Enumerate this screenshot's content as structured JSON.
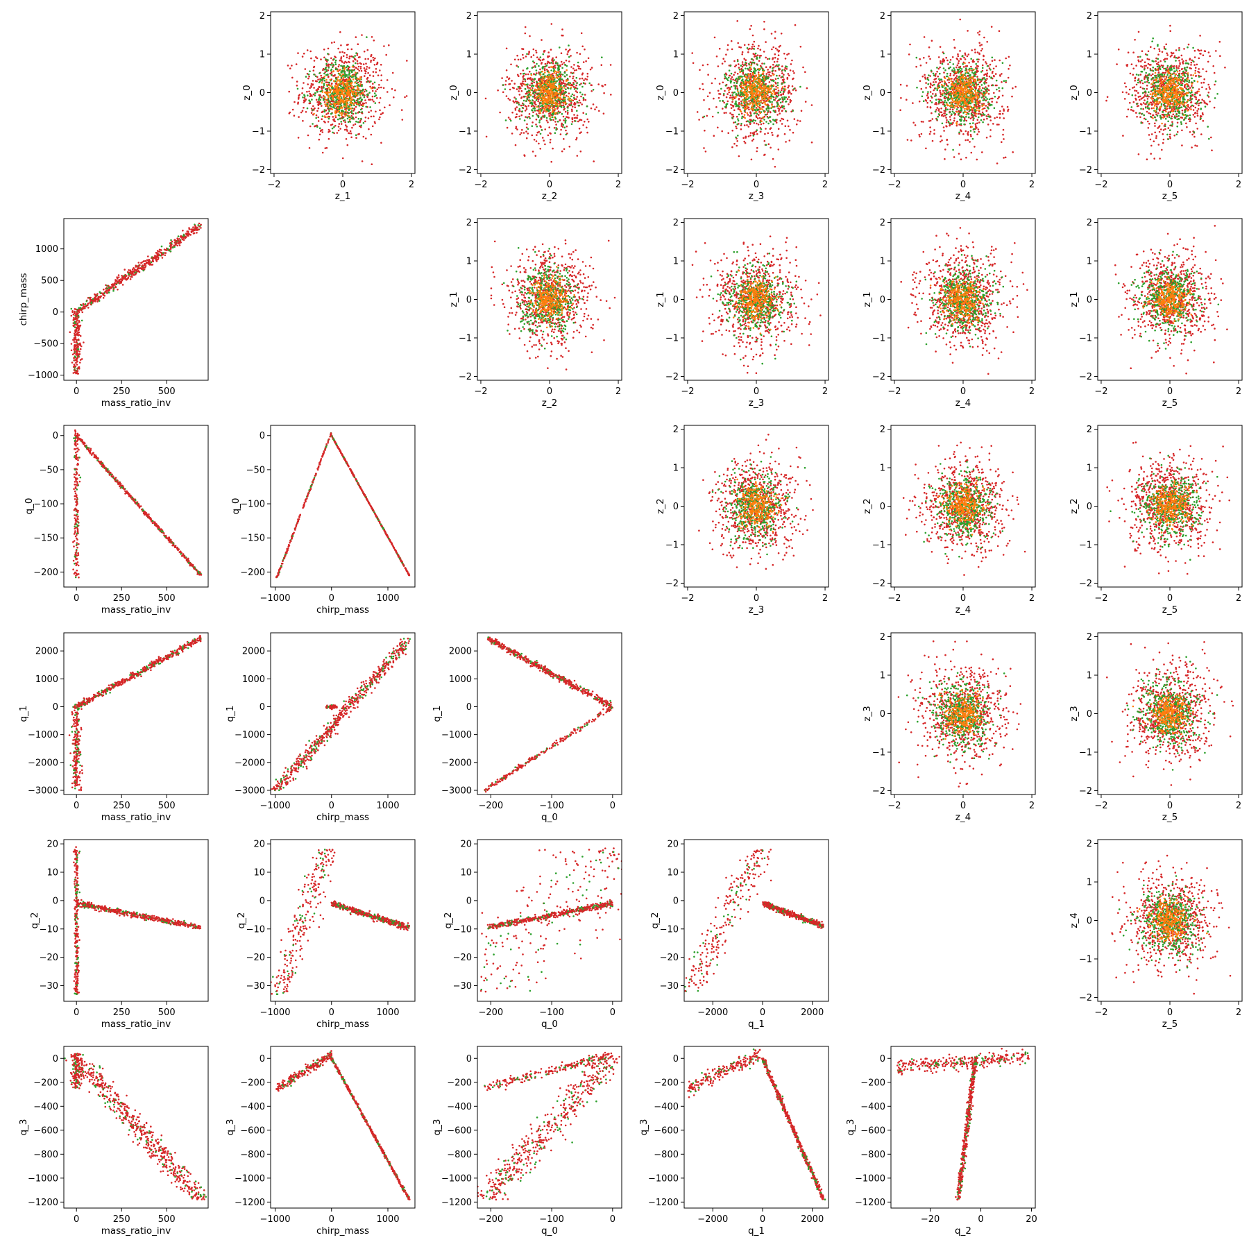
{
  "figure": {
    "type": "scatter-matrix",
    "series_colors": [
      "#d62728",
      "#2ca02c",
      "#ff7f0e"
    ]
  },
  "chart_data": [
    {
      "type": "scatter",
      "shape": "blob",
      "xlabel": "z_1",
      "ylabel": "z_0",
      "xlim": [
        -2.1,
        2.1
      ],
      "ylim": [
        -2.1,
        2.1
      ],
      "xticks": [
        -2,
        0,
        2
      ],
      "yticks": [
        -2,
        -1,
        0,
        1,
        2
      ]
    },
    {
      "type": "scatter",
      "shape": "blob",
      "xlabel": "z_2",
      "ylabel": "z_0",
      "xlim": [
        -2.1,
        2.1
      ],
      "ylim": [
        -2.1,
        2.1
      ],
      "xticks": [
        -2,
        0,
        2
      ],
      "yticks": [
        -2,
        -1,
        0,
        1,
        2
      ]
    },
    {
      "type": "scatter",
      "shape": "blob",
      "xlabel": "z_3",
      "ylabel": "z_0",
      "xlim": [
        -2.1,
        2.1
      ],
      "ylim": [
        -2.1,
        2.1
      ],
      "xticks": [
        -2,
        0,
        2
      ],
      "yticks": [
        -2,
        -1,
        0,
        1,
        2
      ]
    },
    {
      "type": "scatter",
      "shape": "blob",
      "xlabel": "z_4",
      "ylabel": "z_0",
      "xlim": [
        -2.1,
        2.1
      ],
      "ylim": [
        -2.1,
        2.1
      ],
      "xticks": [
        -2,
        0,
        2
      ],
      "yticks": [
        -2,
        -1,
        0,
        1,
        2
      ]
    },
    {
      "type": "scatter",
      "shape": "blob",
      "xlabel": "z_5",
      "ylabel": "z_0",
      "xlim": [
        -2.1,
        2.1
      ],
      "ylim": [
        -2.1,
        2.1
      ],
      "xticks": [
        -2,
        0,
        2
      ],
      "yticks": [
        -2,
        -1,
        0,
        1,
        2
      ]
    },
    {
      "type": "scatter",
      "shape": "lines",
      "xlabel": "mass_ratio_inv",
      "ylabel": "chirp_mass",
      "xlim": [
        -70,
        730
      ],
      "ylim": [
        -1080,
        1480
      ],
      "xticks": [
        0,
        250,
        500
      ],
      "yticks": [
        -1000,
        -500,
        0,
        500,
        1000
      ],
      "segments": [
        {
          "from": [
            0,
            0
          ],
          "to": [
            690,
            1380
          ],
          "spread": 40,
          "n": 500
        },
        {
          "from": [
            0,
            -980
          ],
          "to": [
            0,
            60
          ],
          "spread": 12,
          "n": 220
        }
      ]
    },
    {
      "type": "scatter",
      "shape": "blob",
      "xlabel": "z_2",
      "ylabel": "z_1",
      "xlim": [
        -2.1,
        2.1
      ],
      "ylim": [
        -2.1,
        2.1
      ],
      "xticks": [
        -2,
        0,
        2
      ],
      "yticks": [
        -2,
        -1,
        0,
        1,
        2
      ]
    },
    {
      "type": "scatter",
      "shape": "blob",
      "xlabel": "z_3",
      "ylabel": "z_1",
      "xlim": [
        -2.1,
        2.1
      ],
      "ylim": [
        -2.1,
        2.1
      ],
      "xticks": [
        -2,
        0,
        2
      ],
      "yticks": [
        -2,
        -1,
        0,
        1,
        2
      ]
    },
    {
      "type": "scatter",
      "shape": "blob",
      "xlabel": "z_4",
      "ylabel": "z_1",
      "xlim": [
        -2.1,
        2.1
      ],
      "ylim": [
        -2.1,
        2.1
      ],
      "xticks": [
        -2,
        0,
        2
      ],
      "yticks": [
        -2,
        -1,
        0,
        1,
        2
      ]
    },
    {
      "type": "scatter",
      "shape": "blob",
      "xlabel": "z_5",
      "ylabel": "z_1",
      "xlim": [
        -2.1,
        2.1
      ],
      "ylim": [
        -2.1,
        2.1
      ],
      "xticks": [
        -2,
        0,
        2
      ],
      "yticks": [
        -2,
        -1,
        0,
        1,
        2
      ]
    },
    {
      "type": "scatter",
      "shape": "lines",
      "xlabel": "mass_ratio_inv",
      "ylabel": "q_0",
      "xlim": [
        -70,
        730
      ],
      "ylim": [
        -222,
        15
      ],
      "xticks": [
        0,
        250,
        500
      ],
      "yticks": [
        -200,
        -150,
        -100,
        -50,
        0
      ],
      "segments": [
        {
          "from": [
            0,
            0
          ],
          "to": [
            690,
            -205
          ],
          "spread": 5,
          "n": 500
        },
        {
          "from": [
            0,
            -210
          ],
          "to": [
            0,
            8
          ],
          "spread": 8,
          "n": 200
        }
      ]
    },
    {
      "type": "scatter",
      "shape": "lines",
      "xlabel": "chirp_mass",
      "ylabel": "q_0",
      "xlim": [
        -1080,
        1480
      ],
      "ylim": [
        -222,
        15
      ],
      "xticks": [
        -1000,
        0,
        1000
      ],
      "yticks": [
        -200,
        -150,
        -100,
        -50,
        0
      ],
      "segments": [
        {
          "from": [
            0,
            0
          ],
          "to": [
            1380,
            -205
          ],
          "spread": 3,
          "n": 450
        },
        {
          "from": [
            -980,
            -210
          ],
          "to": [
            0,
            5
          ],
          "spread": 5,
          "n": 200
        }
      ]
    },
    {
      "type": "scatter",
      "shape": "blob",
      "xlabel": "z_3",
      "ylabel": "z_2",
      "xlim": [
        -2.1,
        2.1
      ],
      "ylim": [
        -2.1,
        2.1
      ],
      "xticks": [
        -2,
        0,
        2
      ],
      "yticks": [
        -2,
        -1,
        0,
        1,
        2
      ]
    },
    {
      "type": "scatter",
      "shape": "blob",
      "xlabel": "z_4",
      "ylabel": "z_2",
      "xlim": [
        -2.1,
        2.1
      ],
      "ylim": [
        -2.1,
        2.1
      ],
      "xticks": [
        -2,
        0,
        2
      ],
      "yticks": [
        -2,
        -1,
        0,
        1,
        2
      ]
    },
    {
      "type": "scatter",
      "shape": "blob",
      "xlabel": "z_5",
      "ylabel": "z_2",
      "xlim": [
        -2.1,
        2.1
      ],
      "ylim": [
        -2.1,
        2.1
      ],
      "xticks": [
        -2,
        0,
        2
      ],
      "yticks": [
        -2,
        -1,
        0,
        1,
        2
      ]
    },
    {
      "type": "scatter",
      "shape": "lines",
      "xlabel": "mass_ratio_inv",
      "ylabel": "q_1",
      "xlim": [
        -70,
        730
      ],
      "ylim": [
        -3150,
        2650
      ],
      "xticks": [
        0,
        250,
        500
      ],
      "yticks": [
        -3000,
        -2000,
        -1000,
        0,
        1000,
        2000
      ],
      "segments": [
        {
          "from": [
            0,
            0
          ],
          "to": [
            690,
            2450
          ],
          "spread": 60,
          "n": 500
        },
        {
          "from": [
            0,
            -3000
          ],
          "to": [
            0,
            100
          ],
          "spread": 12,
          "n": 220
        }
      ]
    },
    {
      "type": "scatter",
      "shape": "lines",
      "xlabel": "chirp_mass",
      "ylabel": "q_1",
      "xlim": [
        -1080,
        1480
      ],
      "ylim": [
        -3150,
        2650
      ],
      "xticks": [
        -1000,
        0,
        1000
      ],
      "yticks": [
        -3000,
        -2000,
        -1000,
        0,
        1000,
        2000
      ],
      "segments": [
        {
          "from": [
            -980,
            -3000
          ],
          "to": [
            1380,
            2450
          ],
          "spread": 70,
          "n": 600
        },
        {
          "from": [
            -100,
            0
          ],
          "to": [
            100,
            0
          ],
          "spread": 40,
          "n": 60
        }
      ]
    },
    {
      "type": "scatter",
      "shape": "lines",
      "xlabel": "q_0",
      "ylabel": "q_1",
      "xlim": [
        -222,
        15
      ],
      "ylim": [
        -3150,
        2650
      ],
      "xticks": [
        -200,
        -100,
        0
      ],
      "yticks": [
        -3000,
        -2000,
        -1000,
        0,
        1000,
        2000
      ],
      "segments": [
        {
          "from": [
            0,
            0
          ],
          "to": [
            -205,
            2450
          ],
          "spread": 60,
          "n": 500
        },
        {
          "from": [
            0,
            0
          ],
          "to": [
            -210,
            -3000
          ],
          "spread": 50,
          "n": 220
        }
      ]
    },
    {
      "type": "scatter",
      "shape": "blob",
      "xlabel": "z_4",
      "ylabel": "z_3",
      "xlim": [
        -2.1,
        2.1
      ],
      "ylim": [
        -2.1,
        2.1
      ],
      "xticks": [
        -2,
        0,
        2
      ],
      "yticks": [
        -2,
        -1,
        0,
        1,
        2
      ]
    },
    {
      "type": "scatter",
      "shape": "blob",
      "xlabel": "z_5",
      "ylabel": "z_3",
      "xlim": [
        -2.1,
        2.1
      ],
      "ylim": [
        -2.1,
        2.1
      ],
      "xticks": [
        -2,
        0,
        2
      ],
      "yticks": [
        -2,
        -1,
        0,
        1,
        2
      ]
    },
    {
      "type": "scatter",
      "shape": "lines",
      "xlabel": "mass_ratio_inv",
      "ylabel": "q_2",
      "xlim": [
        -70,
        730
      ],
      "ylim": [
        -35.5,
        21.5
      ],
      "xticks": [
        0,
        250,
        500
      ],
      "yticks": [
        -30,
        -20,
        -10,
        0,
        10,
        20
      ],
      "segments": [
        {
          "from": [
            0,
            -1
          ],
          "to": [
            690,
            -9.5
          ],
          "spread": 0.5,
          "n": 500
        },
        {
          "from": [
            0,
            -33
          ],
          "to": [
            0,
            19
          ],
          "spread": 6,
          "n": 250
        }
      ]
    },
    {
      "type": "scatter",
      "shape": "lines",
      "xlabel": "chirp_mass",
      "ylabel": "q_2",
      "xlim": [
        -1080,
        1480
      ],
      "ylim": [
        -35.5,
        21.5
      ],
      "xticks": [
        -1000,
        0,
        1000
      ],
      "yticks": [
        -30,
        -20,
        -10,
        0,
        10,
        20
      ],
      "segments": [
        {
          "from": [
            0,
            -1
          ],
          "to": [
            1380,
            -9.5
          ],
          "spread": 0.5,
          "n": 450
        },
        {
          "from": [
            -950,
            -33
          ],
          "to": [
            -50,
            18
          ],
          "spread": 120,
          "n": 250
        }
      ]
    },
    {
      "type": "scatter",
      "shape": "lines",
      "xlabel": "q_0",
      "ylabel": "q_2",
      "xlim": [
        -222,
        15
      ],
      "ylim": [
        -35.5,
        21.5
      ],
      "xticks": [
        -200,
        -100,
        0
      ],
      "yticks": [
        -30,
        -20,
        -10,
        0,
        10,
        20
      ],
      "segments": [
        {
          "from": [
            0,
            -1
          ],
          "to": [
            -205,
            -9.5
          ],
          "spread": 0.5,
          "n": 450
        },
        {
          "from": [
            -210,
            -33
          ],
          "to": [
            0,
            19
          ],
          "spread": 50,
          "n": 250
        }
      ]
    },
    {
      "type": "scatter",
      "shape": "lines",
      "xlabel": "q_1",
      "ylabel": "q_2",
      "xlim": [
        -3150,
        2650
      ],
      "ylim": [
        -35.5,
        21.5
      ],
      "xticks": [
        -2000,
        0,
        2000
      ],
      "yticks": [
        -30,
        -20,
        -10,
        0,
        10,
        20
      ],
      "segments": [
        {
          "from": [
            0,
            -1
          ],
          "to": [
            2450,
            -9
          ],
          "spread": 0.5,
          "n": 450
        },
        {
          "from": [
            -3000,
            -33
          ],
          "to": [
            -50,
            18
          ],
          "spread": 300,
          "n": 250
        }
      ]
    },
    {
      "type": "scatter",
      "shape": "blob",
      "xlabel": "z_5",
      "ylabel": "z_4",
      "xlim": [
        -2.1,
        2.1
      ],
      "ylim": [
        -2.1,
        2.1
      ],
      "xticks": [
        -2,
        0,
        2
      ],
      "yticks": [
        -2,
        -1,
        0,
        1,
        2
      ]
    },
    {
      "type": "scatter",
      "shape": "lines",
      "xlabel": "mass_ratio_inv",
      "ylabel": "q_3",
      "xlim": [
        -70,
        730
      ],
      "ylim": [
        -1250,
        100
      ],
      "xticks": [
        0,
        250,
        500
      ],
      "yticks": [
        -1200,
        -1000,
        -800,
        -600,
        -400,
        -200,
        0
      ],
      "segments": [
        {
          "from": [
            0,
            0
          ],
          "to": [
            690,
            -1180
          ],
          "spread": 35,
          "n": 550
        },
        {
          "from": [
            0,
            -250
          ],
          "to": [
            0,
            40
          ],
          "spread": 15,
          "n": 150
        }
      ]
    },
    {
      "type": "scatter",
      "shape": "lines",
      "xlabel": "chirp_mass",
      "ylabel": "q_3",
      "xlim": [
        -1080,
        1480
      ],
      "ylim": [
        -1250,
        100
      ],
      "xticks": [
        -1000,
        0,
        1000
      ],
      "yticks": [
        -1200,
        -1000,
        -800,
        -600,
        -400,
        -200,
        0
      ],
      "segments": [
        {
          "from": [
            0,
            0
          ],
          "to": [
            1380,
            -1180
          ],
          "spread": 10,
          "n": 450
        },
        {
          "from": [
            -980,
            -250
          ],
          "to": [
            0,
            30
          ],
          "spread": 20,
          "n": 220
        }
      ]
    },
    {
      "type": "scatter",
      "shape": "lines",
      "xlabel": "q_0",
      "ylabel": "q_3",
      "xlim": [
        -222,
        15
      ],
      "ylim": [
        -1250,
        100
      ],
      "xticks": [
        -200,
        -100,
        0
      ],
      "yticks": [
        -1200,
        -1000,
        -800,
        -600,
        -400,
        -200,
        0
      ],
      "segments": [
        {
          "from": [
            0,
            20
          ],
          "to": [
            -210,
            -1180
          ],
          "spread": 15,
          "n": 500
        },
        {
          "from": [
            -210,
            -250
          ],
          "to": [
            0,
            30
          ],
          "spread": 20,
          "n": 220
        }
      ]
    },
    {
      "type": "scatter",
      "shape": "lines",
      "xlabel": "q_1",
      "ylabel": "q_3",
      "xlim": [
        -3150,
        2650
      ],
      "ylim": [
        -1250,
        100
      ],
      "xticks": [
        -2000,
        0,
        2000
      ],
      "yticks": [
        -1200,
        -1000,
        -800,
        -600,
        -400,
        -200,
        0
      ],
      "segments": [
        {
          "from": [
            0,
            0
          ],
          "to": [
            2450,
            -1180
          ],
          "spread": 40,
          "n": 500
        },
        {
          "from": [
            -3000,
            -250
          ],
          "to": [
            -100,
            30
          ],
          "spread": 30,
          "n": 220
        }
      ]
    },
    {
      "type": "scatter",
      "shape": "lines",
      "xlabel": "q_2",
      "ylabel": "q_3",
      "xlim": [
        -35.5,
        21.5
      ],
      "ylim": [
        -1250,
        100
      ],
      "xticks": [
        -20,
        0,
        20
      ],
      "yticks": [
        -1200,
        -1000,
        -800,
        -600,
        -400,
        -200,
        0
      ],
      "segments": [
        {
          "from": [
            -2,
            10
          ],
          "to": [
            -9,
            -1180
          ],
          "spread": 0.5,
          "n": 450
        },
        {
          "from": [
            -33,
            -80
          ],
          "to": [
            19,
            20
          ],
          "spread": 30,
          "n": 300
        }
      ]
    }
  ]
}
